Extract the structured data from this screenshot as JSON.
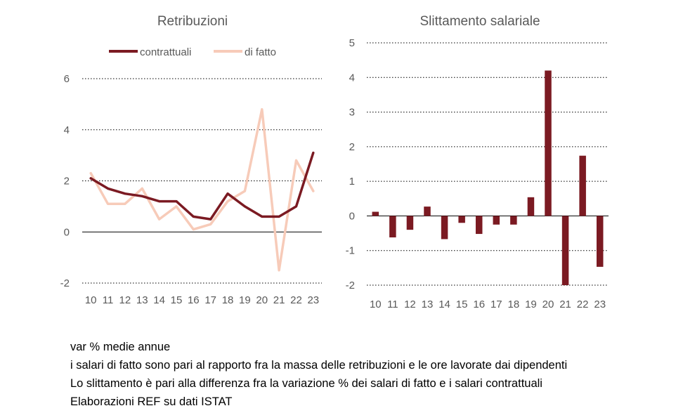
{
  "chart_data": [
    {
      "type": "line",
      "title": "Retribuzioni",
      "xlabel": "",
      "ylabel": "",
      "categories": [
        "10",
        "11",
        "12",
        "13",
        "14",
        "15",
        "16",
        "17",
        "18",
        "19",
        "20",
        "21",
        "22",
        "23"
      ],
      "series": [
        {
          "name": "contrattuali",
          "color": "#7b1a22",
          "values": [
            2.1,
            1.7,
            1.5,
            1.4,
            1.2,
            1.2,
            0.6,
            0.5,
            1.5,
            1.0,
            0.6,
            0.6,
            1.0,
            3.1
          ]
        },
        {
          "name": "di fatto",
          "color": "#f7cbb9",
          "values": [
            2.3,
            1.1,
            1.1,
            1.7,
            0.5,
            1.0,
            0.1,
            0.3,
            1.2,
            1.6,
            4.8,
            -1.5,
            2.8,
            1.6
          ]
        }
      ],
      "ylim": [
        -2,
        6
      ],
      "yticks": [
        "6",
        "4",
        "2",
        "0",
        "-2"
      ],
      "grid": true,
      "legend": "top"
    },
    {
      "type": "bar",
      "title": "Slittamento salariale",
      "xlabel": "",
      "ylabel": "",
      "categories": [
        "10",
        "11",
        "12",
        "13",
        "14",
        "15",
        "16",
        "17",
        "18",
        "19",
        "20",
        "21",
        "22",
        "23"
      ],
      "series": [
        {
          "color": "#7b1a22",
          "values": [
            0.12,
            -0.62,
            -0.4,
            0.27,
            -0.67,
            -0.2,
            -0.52,
            -0.25,
            -0.25,
            0.54,
            4.2,
            -2.0,
            1.74,
            -1.47
          ]
        }
      ],
      "ylim": [
        -2,
        5
      ],
      "yticks": [
        "5",
        "4",
        "3",
        "2",
        "1",
        "0",
        "-1",
        "-2"
      ],
      "grid": true
    }
  ],
  "notes": [
    "var % medie annue",
    "i salari di fatto sono pari al rapporto fra la massa delle retribuzioni e le ore lavorate dai dipendenti",
    "Lo slittamento è pari alla differenza fra la variazione % dei salari di fatto e i salari contrattuali",
    "Elaborazioni REF su dati ISTAT"
  ]
}
